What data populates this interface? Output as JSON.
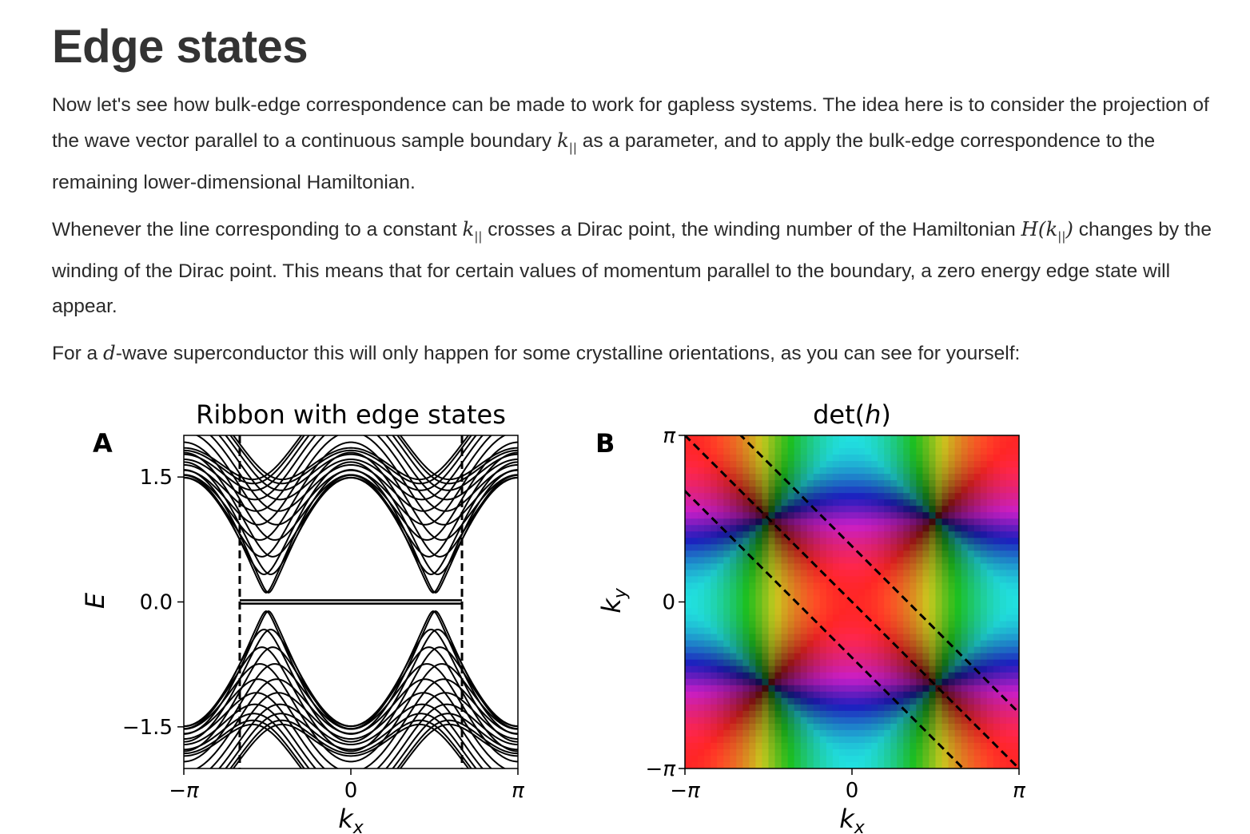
{
  "page": {
    "title": "Edge states",
    "p1": {
      "before": "Now let's see how bulk-edge correspondence can be made to work for gapless systems. The idea here is to consider the projection of the wave vector parallel to a continuous sample boundary ",
      "math": "k",
      "sub": "||",
      "after": " as a parameter, and to apply the bulk-edge correspondence to the remaining lower-dimensional Hamiltonian."
    },
    "p2": {
      "a": "Whenever the line corresponding to a constant ",
      "m1": "k",
      "m1sub": "||",
      "b": " crosses a Dirac point, the winding number of the Hamiltonian ",
      "m2a": "H(k",
      "m2sub": "||",
      "m2b": ")",
      "c": " changes by the winding of the Dirac point. This means that for certain values of momentum parallel to the boundary, a zero energy edge state will appear."
    },
    "p3": {
      "a": "For a ",
      "m": "d",
      "b": "-wave superconductor this will only happen for some crystalline orientations, as you can see for yourself:"
    }
  },
  "chart_data": [
    {
      "type": "line",
      "panel": "A",
      "title": "Ribbon with edge states",
      "xlabel": "k_x",
      "ylabel": "E",
      "xlim": [
        -3.1416,
        3.1416
      ],
      "ylim": [
        -2.0,
        2.0
      ],
      "xticks": [
        "−π",
        "0",
        "π"
      ],
      "yticks": [
        {
          "value": 1.5,
          "label": "1.5"
        },
        {
          "value": 0.0,
          "label": "0.0"
        },
        {
          "value": -1.5,
          "label": "−1.5"
        }
      ],
      "vlines": [
        -2.09,
        2.09
      ],
      "vline_style": "dashed",
      "bands": 20,
      "edge_state_range": [
        -2.09,
        2.09
      ],
      "edge_state_energy": 0.0
    },
    {
      "type": "heatmap",
      "panel": "B",
      "title": "det(h)",
      "xlabel": "k_x",
      "ylabel": "k_y",
      "xlim": [
        -3.1416,
        3.1416
      ],
      "ylim": [
        -3.1416,
        3.1416
      ],
      "xticks": [
        "−π",
        "0",
        "π"
      ],
      "yticks": [
        "π",
        "0",
        "−π"
      ],
      "dashed_lines": [
        {
          "slope": -1,
          "intercept": 1.05
        },
        {
          "slope": -1,
          "intercept": 0.0
        },
        {
          "slope": -1,
          "intercept": -1.05
        }
      ]
    }
  ]
}
